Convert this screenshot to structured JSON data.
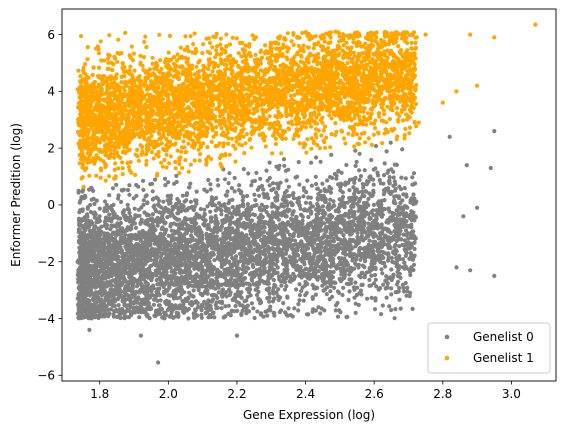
{
  "chart_data": {
    "type": "scatter",
    "title": "",
    "xlabel": "Gene Expression (log)",
    "ylabel": "Enformer Predition (log)",
    "xlim": [
      1.69,
      3.13
    ],
    "ylim": [
      -6.2,
      6.9
    ],
    "xticks": [
      "1.8",
      "2.0",
      "2.2",
      "2.4",
      "2.6",
      "2.8",
      "3.0"
    ],
    "xtick_values": [
      1.8,
      2.0,
      2.2,
      2.4,
      2.6,
      2.8,
      3.0
    ],
    "yticks": [
      "6",
      "4",
      "2",
      "0",
      "−2",
      "−4",
      "−6"
    ],
    "ytick_values": [
      6,
      4,
      2,
      0,
      -2,
      -4,
      -6
    ],
    "grid": false,
    "legend_position": "bottom-right",
    "series": [
      {
        "name": "Genelist 0",
        "color": "#808080",
        "marker": "circle",
        "distribution": {
          "count": 5200,
          "x_range": [
            1.74,
            2.72
          ],
          "y_floor": -4.0,
          "boundary_line": {
            "y_at_x_1_75": 0.6,
            "y_at_x_2_70": 2.3
          },
          "center": [
            2.2,
            -1.6
          ]
        },
        "outliers": [
          [
            1.97,
            -5.55
          ],
          [
            1.92,
            -4.6
          ],
          [
            2.2,
            -4.6
          ],
          [
            2.95,
            -2.5
          ],
          [
            2.84,
            -2.2
          ],
          [
            2.88,
            -2.3
          ],
          [
            2.86,
            -0.4
          ],
          [
            2.87,
            1.4
          ],
          [
            2.94,
            1.3
          ],
          [
            2.95,
            2.6
          ],
          [
            2.82,
            2.4
          ],
          [
            2.9,
            -0.1
          ],
          [
            1.77,
            -4.4
          ]
        ]
      },
      {
        "name": "Genelist 1",
        "color": "#FFA500",
        "marker": "circle",
        "distribution": {
          "count": 4300,
          "x_range": [
            1.74,
            2.95
          ],
          "y_cap": 6.1,
          "boundary_line": {
            "y_at_x_1_75": 0.6,
            "y_at_x_2_70": 2.3
          },
          "center": [
            2.3,
            4.2
          ]
        },
        "outliers": [
          [
            3.07,
            6.35
          ],
          [
            2.95,
            5.9
          ],
          [
            2.88,
            6.0
          ],
          [
            2.75,
            6.0
          ],
          [
            2.9,
            4.2
          ],
          [
            2.8,
            3.6
          ],
          [
            2.84,
            4.0
          ],
          [
            2.73,
            2.9
          ]
        ]
      }
    ]
  }
}
